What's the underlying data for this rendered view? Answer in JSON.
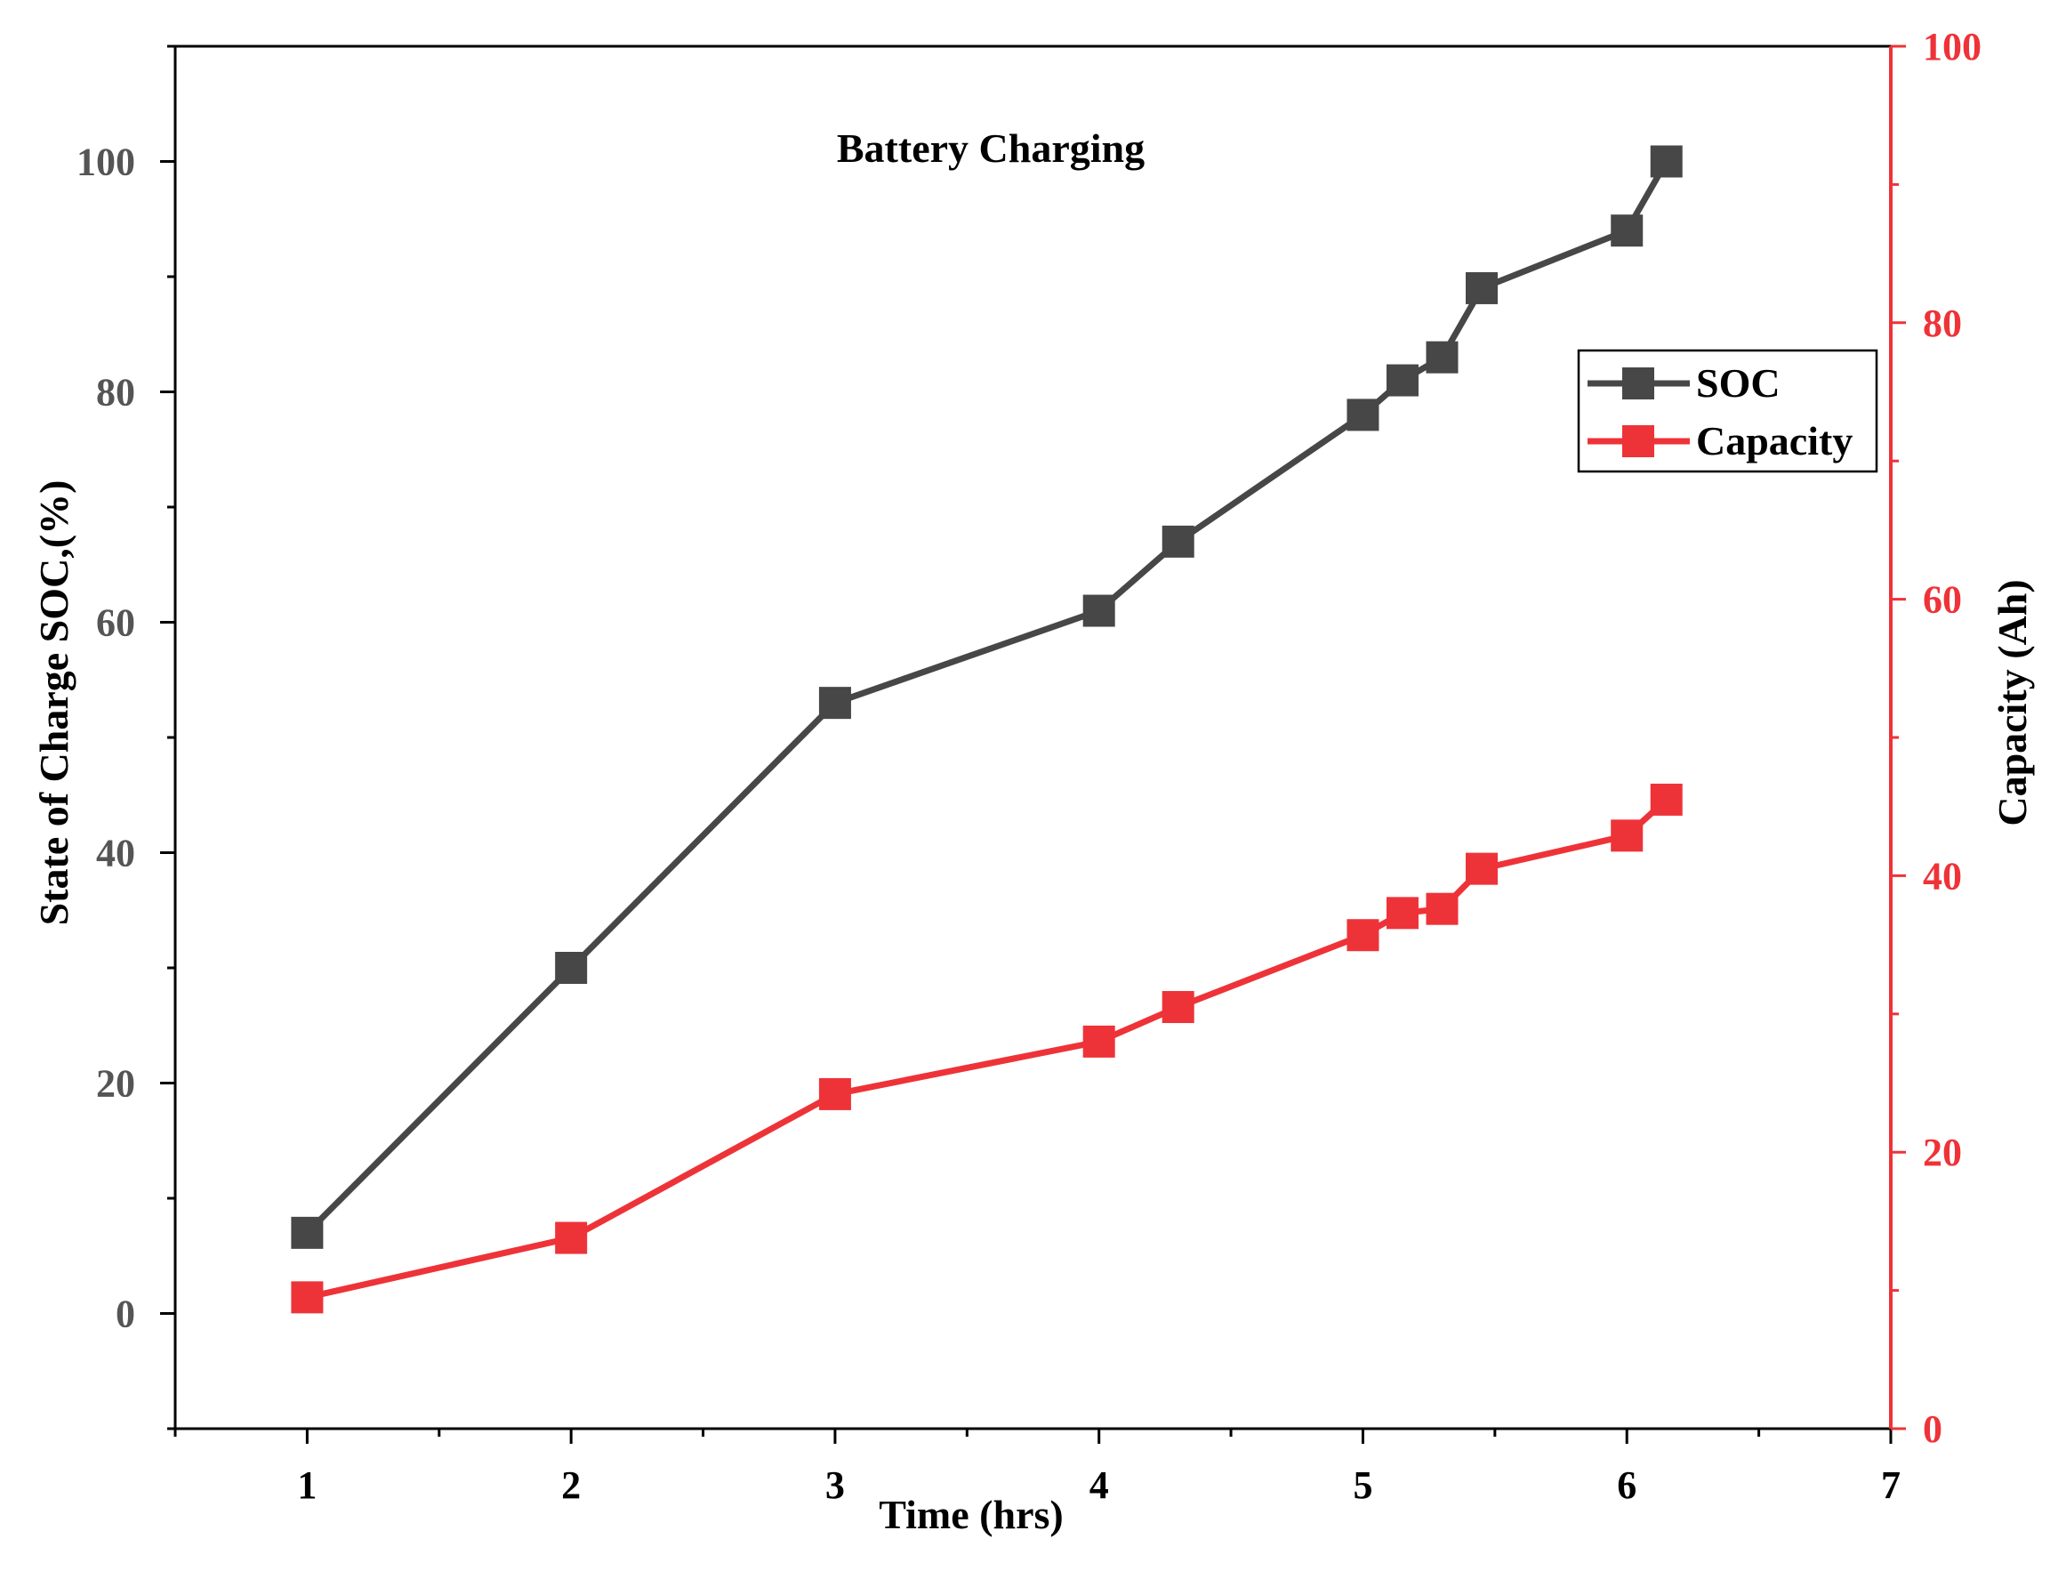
{
  "chart_data": {
    "type": "line",
    "title": "Battery Charging",
    "xlabel": "Time (hrs)",
    "ylabel": "State of Charge SOC,(%)",
    "y2label": "Capacity (Ah)",
    "xlim": [
      0.5,
      7
    ],
    "ylim": [
      -10,
      110
    ],
    "y2lim": [
      0,
      100
    ],
    "x_ticks": [
      1,
      2,
      3,
      4,
      5,
      6,
      7
    ],
    "y_ticks": [
      0,
      20,
      40,
      60,
      80,
      100
    ],
    "y2_ticks": [
      0,
      20,
      40,
      60,
      80,
      100
    ],
    "legend_position": "top-right",
    "grid": false,
    "colors": {
      "soc": "#474747",
      "capacity": "#ee3338",
      "axis": "#000000",
      "right_axis": "#ee3338"
    },
    "series": [
      {
        "name": "SOC",
        "axis": "left",
        "x": [
          1,
          2,
          3,
          4,
          4.3,
          5,
          5.15,
          5.3,
          5.45,
          6,
          6.15
        ],
        "values": [
          7,
          30,
          53,
          61,
          67,
          78,
          81,
          83,
          89,
          94,
          100
        ]
      },
      {
        "name": "Capacity",
        "axis": "right",
        "x": [
          1,
          2,
          3,
          4,
          4.3,
          5,
          5.15,
          5.3,
          5.45,
          6,
          6.15
        ],
        "values": [
          9.5,
          13.8,
          24.2,
          28.0,
          30.5,
          35.7,
          37.3,
          37.6,
          40.5,
          42.9,
          45.5
        ]
      }
    ]
  }
}
